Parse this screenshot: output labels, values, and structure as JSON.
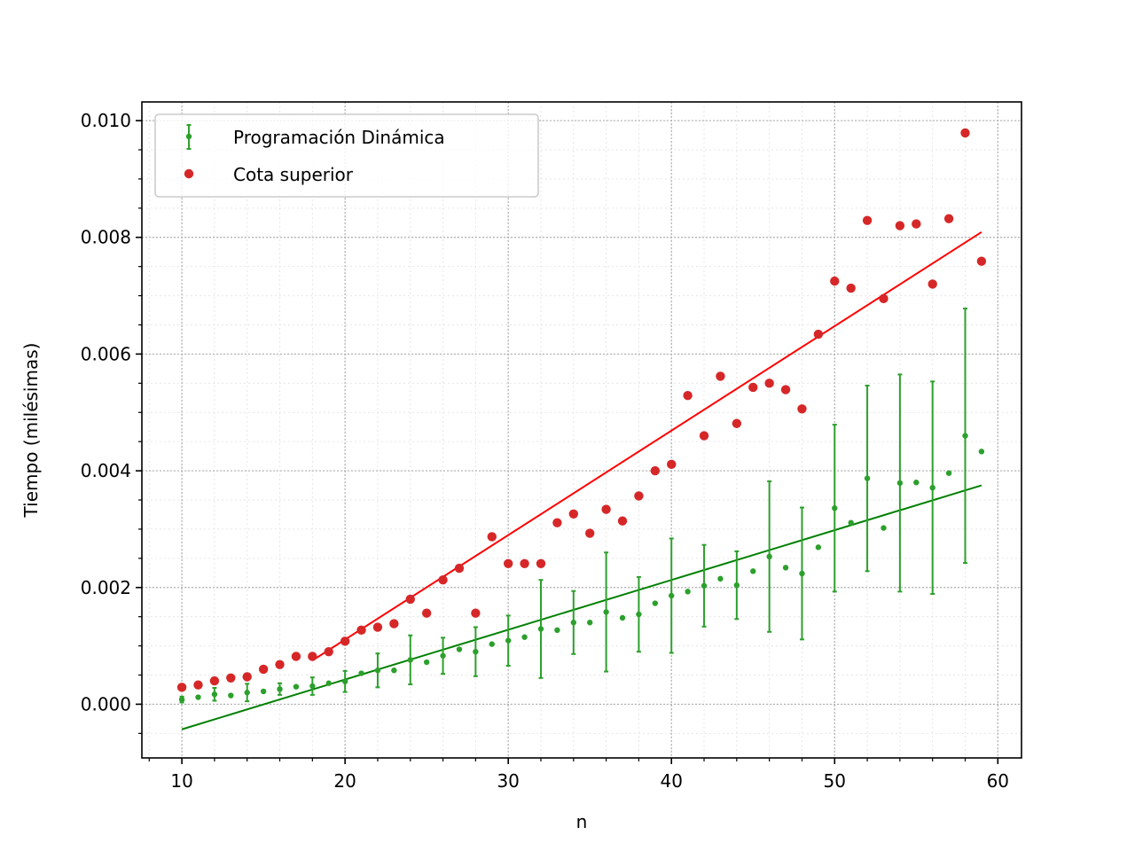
{
  "chart_data": {
    "type": "scatter",
    "title": "",
    "xlabel": "n",
    "ylabel": "Tiempo (milésimas)",
    "xlim": [
      7.55,
      61.45
    ],
    "ylim": [
      -0.00092,
      0.01032
    ],
    "xticks": [
      10,
      20,
      30,
      40,
      50,
      60
    ],
    "xtick_labels": [
      "10",
      "20",
      "30",
      "40",
      "50",
      "60"
    ],
    "yticks": [
      0.0,
      0.002,
      0.004,
      0.006,
      0.008,
      0.01
    ],
    "ytick_labels": [
      "0.000",
      "0.002",
      "0.004",
      "0.006",
      "0.008",
      "0.010"
    ],
    "grid": true,
    "legend_position": "top-left",
    "series": [
      {
        "name": "Programación Dinámica",
        "color": "#2ca02c",
        "kind": "errorbar",
        "x": [
          10,
          11,
          12,
          13,
          14,
          15,
          16,
          17,
          18,
          19,
          20,
          21,
          22,
          23,
          24,
          25,
          26,
          27,
          28,
          29,
          30,
          31,
          32,
          33,
          34,
          35,
          36,
          37,
          38,
          39,
          40,
          41,
          42,
          43,
          44,
          45,
          46,
          47,
          48,
          49,
          50,
          51,
          52,
          53,
          54,
          55,
          56,
          57,
          58,
          59
        ],
        "y": [
          8e-05,
          0.00012,
          0.00017,
          0.00015,
          0.0002,
          0.00022,
          0.00026,
          0.0003,
          0.00031,
          0.00036,
          0.00039,
          0.00053,
          0.00058,
          0.00058,
          0.00076,
          0.00072,
          0.00083,
          0.00094,
          0.0009,
          0.00103,
          0.00109,
          0.00115,
          0.00129,
          0.00127,
          0.0014,
          0.0014,
          0.00158,
          0.00148,
          0.00154,
          0.00173,
          0.00186,
          0.00193,
          0.00203,
          0.00215,
          0.00204,
          0.00228,
          0.00253,
          0.00234,
          0.00224,
          0.00269,
          0.00336,
          0.00311,
          0.00387,
          0.00302,
          0.00379,
          0.0038,
          0.00371,
          0.00396,
          0.0046,
          0.00433
        ],
        "yerr": [
          5e-05,
          0,
          0.00011,
          0,
          0.00015,
          0,
          0.0001,
          0,
          0.00015,
          0,
          0.00018,
          0,
          0.00029,
          0,
          0.00042,
          0,
          0.00031,
          0,
          0.00042,
          0,
          0.00043,
          0,
          0.00084,
          0,
          0.00054,
          0,
          0.00102,
          0,
          0.00064,
          0,
          0.00098,
          0,
          0.0007,
          0,
          0.00058,
          0,
          0.00129,
          0,
          0.00113,
          0,
          0.00143,
          0,
          0.00159,
          0,
          0.00186,
          0,
          0.00182,
          0,
          0.00218,
          0
        ]
      },
      {
        "name": "Cota superior",
        "color": "#d62728",
        "kind": "scatter",
        "x": [
          10,
          11,
          12,
          13,
          14,
          15,
          16,
          17,
          18,
          19,
          20,
          21,
          22,
          23,
          24,
          25,
          26,
          27,
          28,
          29,
          30,
          31,
          32,
          33,
          34,
          35,
          36,
          37,
          38,
          39,
          40,
          41,
          42,
          43,
          44,
          45,
          46,
          47,
          48,
          49,
          50,
          51,
          52,
          53,
          54,
          55,
          56,
          57,
          58,
          59
        ],
        "y": [
          0.00029,
          0.00033,
          0.0004,
          0.00045,
          0.00047,
          0.0006,
          0.00068,
          0.00082,
          0.00082,
          0.0009,
          0.00108,
          0.00127,
          0.00132,
          0.00138,
          0.0018,
          0.00156,
          0.00213,
          0.00233,
          0.00156,
          0.00287,
          0.00241,
          0.00241,
          0.00241,
          0.00311,
          0.00326,
          0.00293,
          0.00334,
          0.00314,
          0.00357,
          0.004,
          0.00411,
          0.00529,
          0.0046,
          0.00562,
          0.00481,
          0.00543,
          0.0055,
          0.00539,
          0.00506,
          0.00634,
          0.00725,
          0.00713,
          0.00829,
          0.00695,
          0.0082,
          0.00823,
          0.0072,
          0.00832,
          0.00979,
          0.00759
        ]
      }
    ],
    "fit_lines": [
      {
        "color": "#008000",
        "x": [
          10,
          59
        ],
        "y": [
          -0.00043,
          0.00375
        ]
      },
      {
        "color": "#ff0000",
        "x": [
          18,
          59
        ],
        "y": [
          0.00075,
          0.00809
        ]
      }
    ]
  }
}
